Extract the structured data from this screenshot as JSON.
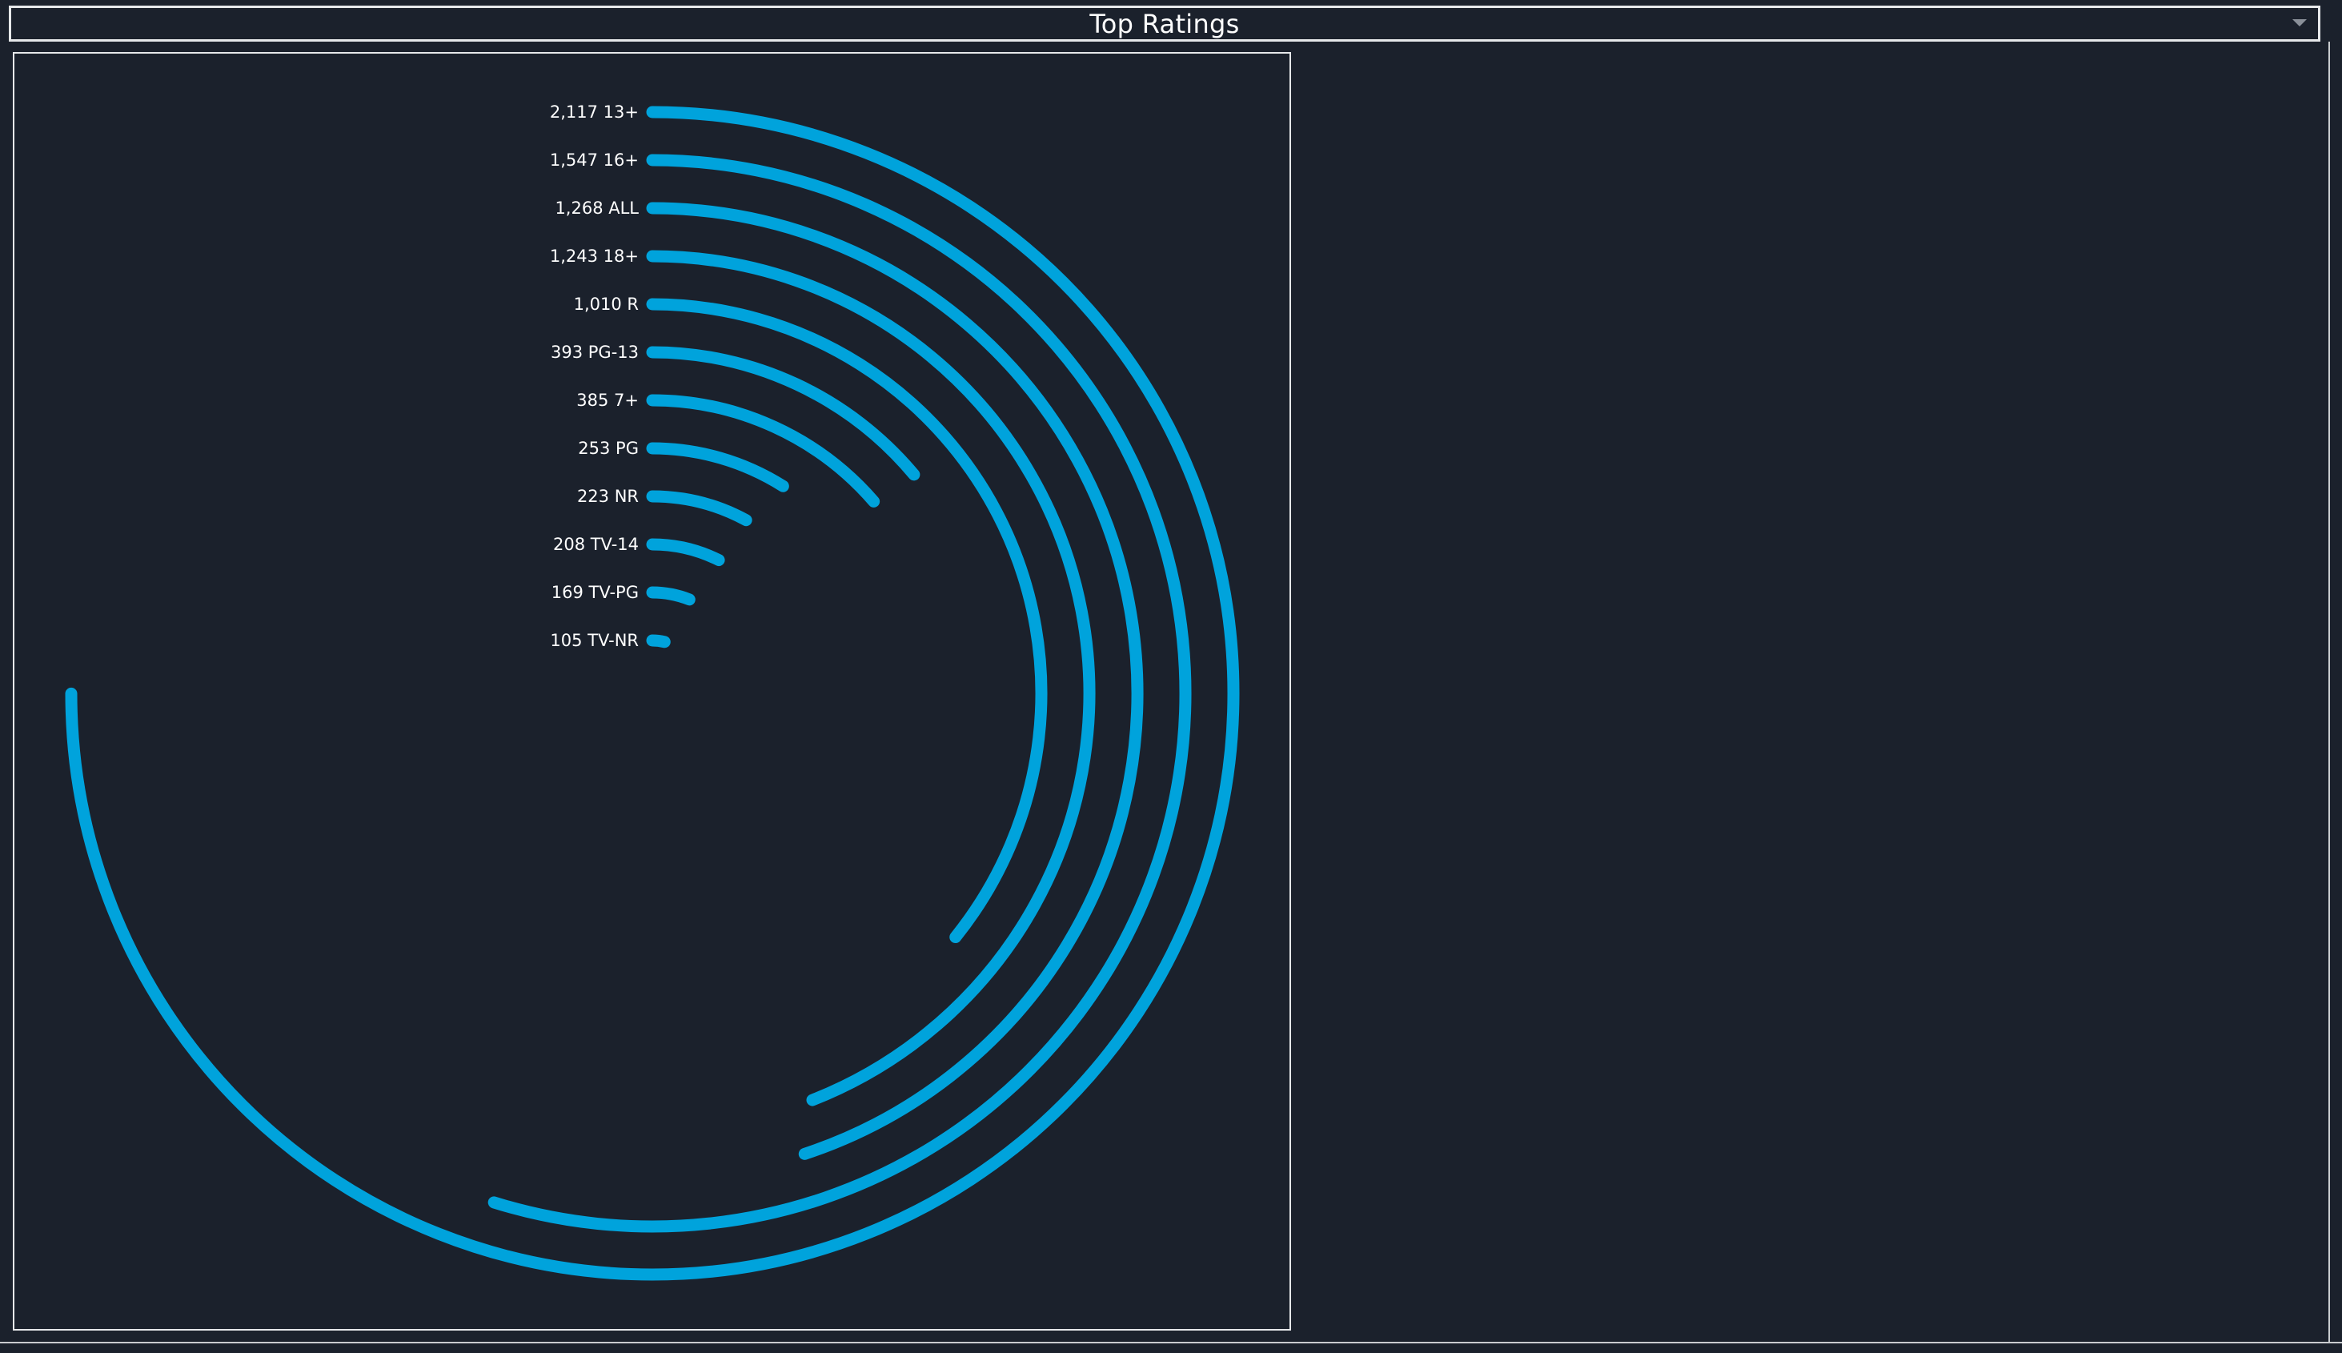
{
  "header": {
    "title": "Top Ratings",
    "dropdown_icon": "chevron-down-icon"
  },
  "colors": {
    "background": "#1b212c",
    "arc": "#00a3dc",
    "text": "#ffffff",
    "frame": "#e6e8ea"
  },
  "chart_data": {
    "type": "radial-bar",
    "title": "Top Ratings",
    "categories": [
      "13+",
      "16+",
      "ALL",
      "18+",
      "R",
      "PG-13",
      "7+",
      "PG",
      "NR",
      "TV-14",
      "TV-PG",
      "TV-NR"
    ],
    "values": [
      2117,
      1547,
      1268,
      1243,
      1010,
      393,
      385,
      253,
      223,
      208,
      169,
      105
    ],
    "labels": [
      "2,117 13+",
      "1,547 16+",
      "1,268 ALL",
      "1,243 18+",
      "1,010 R",
      "393 PG-13",
      "385 7+",
      "253 PG",
      "223 NR",
      "208 TV-14",
      "169 TV-PG",
      "105 TV-NR"
    ],
    "full_circle_value": 2823,
    "start_angle": "top",
    "direction": "clockwise"
  }
}
